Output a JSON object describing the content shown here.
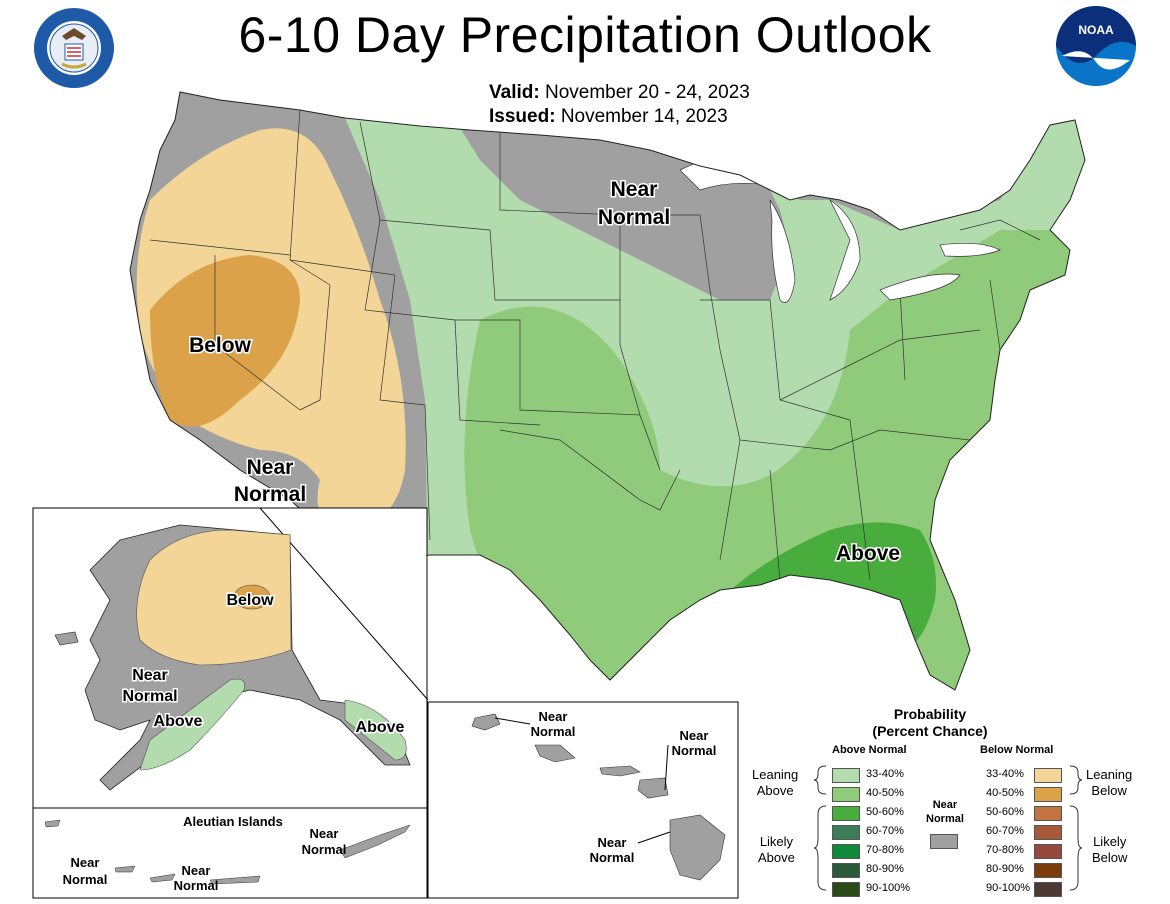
{
  "header": {
    "title": "6-10 Day Precipitation Outlook",
    "valid_label": "Valid:",
    "valid_value": "November 20 - 24, 2023",
    "issued_label": "Issued:",
    "issued_value": "November 14, 2023"
  },
  "logos": {
    "left": {
      "icon": "department-of-commerce-seal-icon",
      "text": "DEPARTMENT OF COMMERCE · UNITED STATES OF AMERICA"
    },
    "right": {
      "icon": "noaa-logo-icon",
      "text": "NOAA"
    }
  },
  "conus_labels": {
    "below": "Below",
    "near_normal_north": [
      "Near",
      "Normal"
    ],
    "near_normal_southwest": [
      "Near",
      "Normal"
    ],
    "above": "Above"
  },
  "alaska_labels": {
    "below": "Below",
    "near_normal": [
      "Near",
      "Normal"
    ],
    "above_west": "Above",
    "above_east": "Above"
  },
  "aleutian": {
    "title": "Aleutian Islands",
    "labels": [
      [
        "Near",
        "Normal"
      ],
      [
        "Near",
        "Normal"
      ],
      [
        "Near",
        "Normal"
      ]
    ]
  },
  "hawaii_labels": [
    [
      "Near",
      "Normal"
    ],
    [
      "Near",
      "Normal"
    ],
    [
      "Near",
      "Normal"
    ]
  ],
  "legend": {
    "title_line1": "Probability",
    "title_line2": "(Percent Chance)",
    "above_header": "Above Normal",
    "below_header": "Below Normal",
    "near_label": [
      "Near",
      "Normal"
    ],
    "near_color": "#a0a0a0",
    "leaning_above": [
      "Leaning",
      "Above"
    ],
    "likely_above": [
      "Likely",
      "Above"
    ],
    "leaning_below": [
      "Leaning",
      "Below"
    ],
    "likely_below": [
      "Likely",
      "Below"
    ],
    "above": [
      {
        "range": "33-40%",
        "color": "#b3dcae"
      },
      {
        "range": "40-50%",
        "color": "#8fcb7a"
      },
      {
        "range": "50-60%",
        "color": "#48ad3c"
      },
      {
        "range": "60-70%",
        "color": "#3a7d58"
      },
      {
        "range": "70-80%",
        "color": "#0e8a3a"
      },
      {
        "range": "80-90%",
        "color": "#2a5a39"
      },
      {
        "range": "90-100%",
        "color": "#2a4a1a"
      }
    ],
    "below": [
      {
        "range": "33-40%",
        "color": "#f2d597"
      },
      {
        "range": "40-50%",
        "color": "#dca24a"
      },
      {
        "range": "50-60%",
        "color": "#c2733f"
      },
      {
        "range": "60-70%",
        "color": "#a8593a"
      },
      {
        "range": "70-80%",
        "color": "#944a3c"
      },
      {
        "range": "80-90%",
        "color": "#7a3e0c"
      },
      {
        "range": "90-100%",
        "color": "#4d3a34"
      }
    ]
  },
  "colors": {
    "near_normal": "#a0a0a0",
    "lean_above": "#b3dcae",
    "above_40_50": "#8fcb7a",
    "above_50_60": "#48ad3c",
    "lean_below": "#f2d597",
    "below_40_50": "#dca24a"
  }
}
